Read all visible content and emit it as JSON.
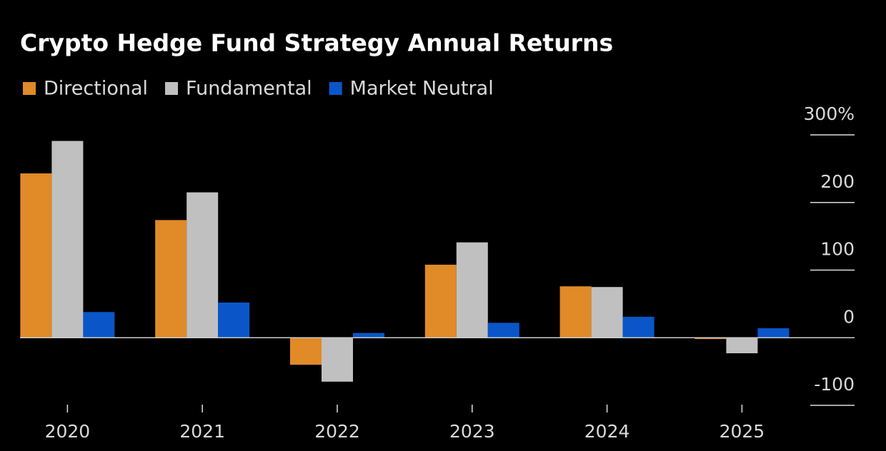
{
  "chart_data": {
    "type": "bar",
    "title": "Crypto Hedge Fund Strategy Annual Returns",
    "categories": [
      "2020",
      "2021",
      "2022",
      "2023",
      "2024",
      "2025"
    ],
    "series": [
      {
        "name": "Directional",
        "color": "#e08a28",
        "values": [
          243,
          174,
          -40,
          108,
          76,
          -2
        ]
      },
      {
        "name": "Fundamental",
        "color": "#c0c0c0",
        "values": [
          291,
          215,
          -65,
          141,
          75,
          -23
        ]
      },
      {
        "name": "Market Neutral",
        "color": "#0a56c8",
        "values": [
          38,
          52,
          7,
          22,
          31,
          14
        ]
      }
    ],
    "ylim": [
      -100,
      300
    ],
    "yticks": [
      -100,
      0,
      100,
      200,
      {
        "value": 300,
        "label": "300%"
      }
    ],
    "legend": "top-left"
  }
}
